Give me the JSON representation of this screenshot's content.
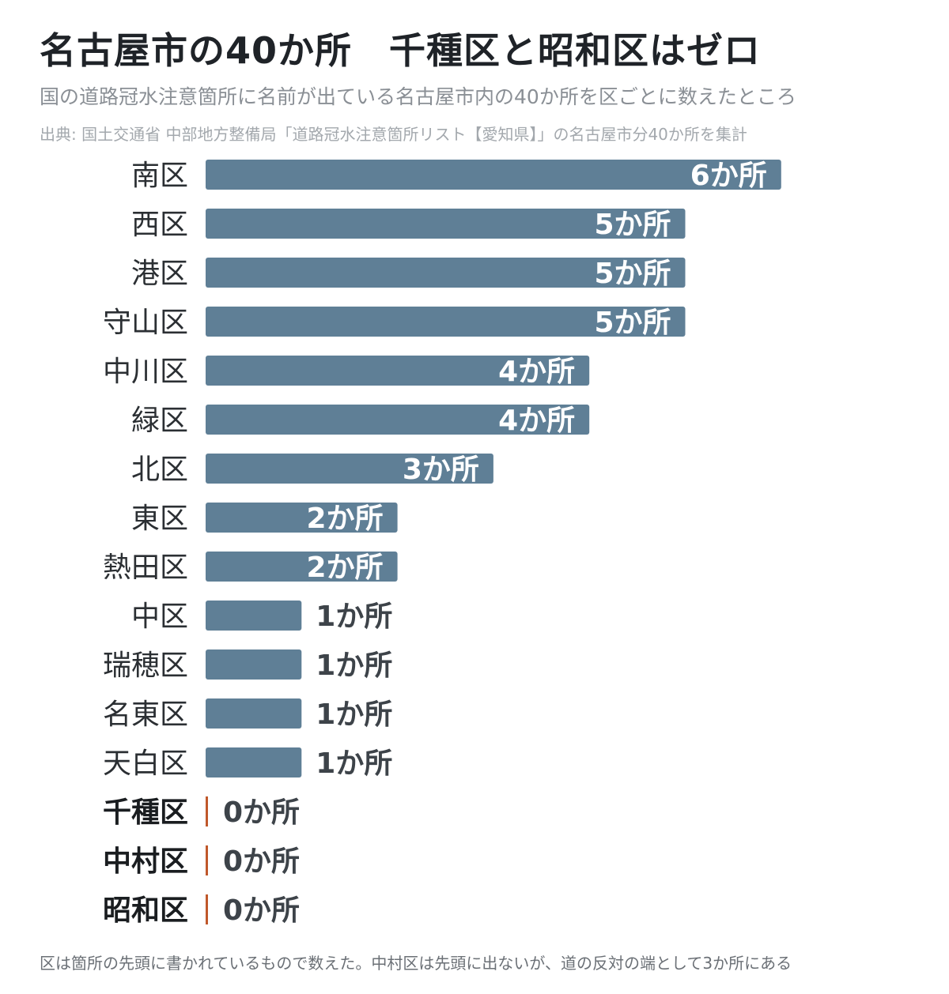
{
  "title": "名古屋市の40か所　千種区と昭和区はゼロ",
  "subtitle": "国の道路冠水注意箇所に名前が出ている名古屋市内の40か所を区ごとに数えたところ",
  "source": "出典: 国土交通省 中部地方整備局「道路冠水注意箇所リスト【愛知県】」の名古屋市分40か所を集計",
  "note": "区は箇所の先頭に書かれているもので数えた。中村区は先頭に出ないが、道の反対の端として3か所にある",
  "colors": {
    "bar": "#5f7f96",
    "zero": "#c0582b",
    "label_inside": "#ffffff",
    "label_outside": "#3d4349"
  },
  "chart_data": {
    "type": "bar",
    "orientation": "horizontal",
    "unit": "か所",
    "categories": [
      "南区",
      "西区",
      "港区",
      "守山区",
      "中川区",
      "緑区",
      "北区",
      "東区",
      "熱田区",
      "中区",
      "瑞穂区",
      "名東区",
      "天白区",
      "千種区",
      "中村区",
      "昭和区"
    ],
    "values": [
      6,
      5,
      5,
      5,
      4,
      4,
      3,
      2,
      2,
      1,
      1,
      1,
      1,
      0,
      0,
      0
    ],
    "labels": [
      "6か所",
      "5か所",
      "5か所",
      "5か所",
      "4か所",
      "4か所",
      "3か所",
      "2か所",
      "2か所",
      "1か所",
      "1か所",
      "1か所",
      "1か所",
      "0か所",
      "0か所",
      "0か所"
    ],
    "highlight": [
      "千種区",
      "中村区",
      "昭和区"
    ],
    "xlim": [
      0,
      6
    ]
  }
}
